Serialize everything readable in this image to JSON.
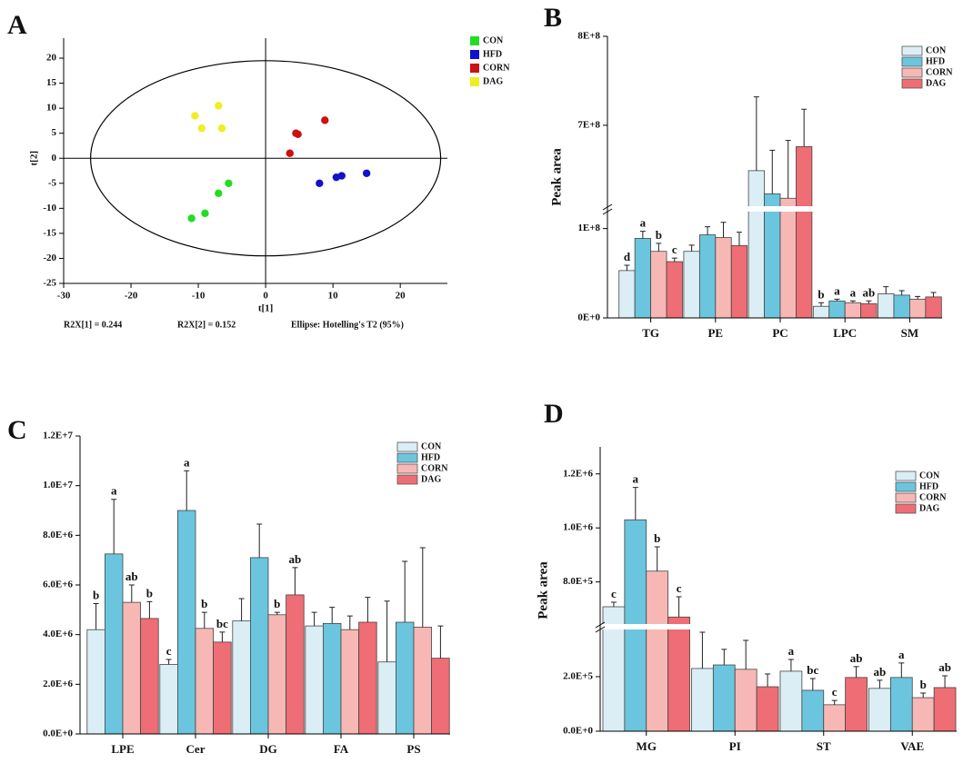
{
  "chart_data": [
    {
      "type": "scatter",
      "panel": "A",
      "xlabel": "t[1]",
      "ylabel": "t[2]",
      "xlim": [
        -30,
        27
      ],
      "ylim": [
        -25,
        24
      ],
      "xticks": [
        -30,
        -20,
        -10,
        0,
        10,
        20
      ],
      "yticks": [
        -25,
        -20,
        -15,
        -10,
        -5,
        0,
        5,
        10,
        15,
        20
      ],
      "ellipse": {
        "rx": 26,
        "ry": 19.5
      },
      "annotations": [
        "R2X[1] = 0.244",
        "R2X[2] = 0.152",
        "Ellipse: Hotelling's T2 (95%)"
      ],
      "series": [
        {
          "name": "CON",
          "color": "#22dd22",
          "x": [
            -11,
            -9,
            -7,
            -5.5
          ],
          "y": [
            -12,
            -11,
            -7,
            -5
          ]
        },
        {
          "name": "HFD",
          "color": "#1111cc",
          "x": [
            8,
            10.5,
            11.3,
            15
          ],
          "y": [
            -5,
            -3.8,
            -3.5,
            -3
          ]
        },
        {
          "name": "CORN",
          "color": "#cc1111",
          "x": [
            4.5,
            4.8,
            8.8,
            3.6
          ],
          "y": [
            5,
            4.8,
            7.6,
            1
          ]
        },
        {
          "name": "DAG",
          "color": "#eeee22",
          "x": [
            -10.5,
            -7,
            -9.5,
            -6.5
          ],
          "y": [
            8.5,
            10.5,
            6,
            6
          ]
        }
      ]
    },
    {
      "type": "bar",
      "panel": "B",
      "ylabel": "Peak area",
      "categories": [
        "TG",
        "PE",
        "PC",
        "LPC",
        "SM"
      ],
      "ylim": [
        0,
        800000000
      ],
      "ybreak": [
        122000000,
        606000000
      ],
      "yticks": [
        {
          "value": 0,
          "label": "0E+0"
        },
        {
          "value": 100000000,
          "label": "1E+8"
        },
        {
          "value": 700000000,
          "label": "7E+8"
        },
        {
          "value": 800000000,
          "label": "8E+8"
        }
      ],
      "series": [
        {
          "name": "CON",
          "color": "#dbeef5",
          "values": [
            53000000,
            74500000,
            649000000,
            13000000,
            27000000
          ],
          "errors": [
            6000000,
            7000000,
            83000000,
            4000000,
            8000000
          ],
          "letters": [
            "d",
            null,
            null,
            "b",
            null
          ]
        },
        {
          "name": "HFD",
          "color": "#6cc5de",
          "values": [
            89000000,
            93000000,
            623000000,
            19000000,
            25500000
          ],
          "errors": [
            8000000,
            9000000,
            49000000,
            2000000,
            5000000
          ],
          "letters": [
            "a",
            null,
            null,
            "a",
            null
          ]
        },
        {
          "name": "CORN",
          "color": "#f7b8b5",
          "values": [
            74500000,
            90000000,
            618000000,
            17000000,
            21000000
          ],
          "errors": [
            9000000,
            17000000,
            65000000,
            2000000,
            3000000
          ],
          "letters": [
            "b",
            null,
            null,
            "a",
            null
          ]
        },
        {
          "name": "DAG",
          "color": "#ef6d74",
          "values": [
            63000000,
            81000000,
            676000000,
            16000000,
            23500000
          ],
          "errors": [
            4000000,
            15000000,
            42000000,
            3000000,
            5000000
          ],
          "letters": [
            "c",
            null,
            null,
            "ab",
            null
          ]
        }
      ]
    },
    {
      "type": "bar",
      "panel": "C",
      "categories": [
        "LPE",
        "Cer",
        "DG",
        "FA",
        "PS"
      ],
      "ylim": [
        0,
        12000000
      ],
      "yticks": [
        {
          "value": 0,
          "label": "0.0E+0"
        },
        {
          "value": 2000000,
          "label": "2.0E+6"
        },
        {
          "value": 4000000,
          "label": "4.0E+6"
        },
        {
          "value": 6000000,
          "label": "6.0E+6"
        },
        {
          "value": 8000000,
          "label": "8.0E+6"
        },
        {
          "value": 10000000,
          "label": "1.0E+7"
        },
        {
          "value": 12000000,
          "label": "1.2E+7"
        }
      ],
      "series": [
        {
          "name": "CON",
          "color": "#dbeef5",
          "values": [
            4200000,
            2800000,
            4550000,
            4350000,
            2900000
          ],
          "errors": [
            1050000,
            200000,
            900000,
            550000,
            2450000
          ],
          "letters": [
            "b",
            "c",
            null,
            null,
            null
          ]
        },
        {
          "name": "HFD",
          "color": "#6cc5de",
          "values": [
            7250000,
            9000000,
            7100000,
            4450000,
            4500000
          ],
          "errors": [
            2200000,
            1600000,
            1350000,
            650000,
            2450000
          ],
          "letters": [
            "a",
            "a",
            null,
            null,
            null
          ]
        },
        {
          "name": "CORN",
          "color": "#f7b8b5",
          "values": [
            5300000,
            4250000,
            4800000,
            4200000,
            4300000
          ],
          "errors": [
            700000,
            650000,
            100000,
            550000,
            3200000
          ],
          "letters": [
            "ab",
            "b",
            "b",
            null,
            null
          ]
        },
        {
          "name": "DAG",
          "color": "#ef6d74",
          "values": [
            4650000,
            3700000,
            5600000,
            4500000,
            3050000
          ],
          "errors": [
            680000,
            400000,
            1100000,
            1000000,
            1300000
          ],
          "letters": [
            "b",
            "bc",
            "ab",
            null,
            null
          ]
        }
      ]
    },
    {
      "type": "bar",
      "panel": "D",
      "ylabel": "Peak area",
      "categories": [
        "MG",
        "PI",
        "ST",
        "VAE"
      ],
      "ylim": [
        0,
        1300000
      ],
      "ybreak": [
        383000,
        634000
      ],
      "yticks": [
        {
          "value": 0,
          "label": "0.0E+0"
        },
        {
          "value": 200000,
          "label": "2.0E+5"
        },
        {
          "value": 800000,
          "label": "8.0E+5"
        },
        {
          "value": 1000000,
          "label": "1.0E+6"
        },
        {
          "value": 1200000,
          "label": "1.2E+6"
        }
      ],
      "series": [
        {
          "name": "CON",
          "color": "#dbeef5",
          "values": [
            708000,
            230000,
            220000,
            157000
          ],
          "errors": [
            17000,
            133000,
            43000,
            30000
          ],
          "letters": [
            "c",
            null,
            "a",
            "ab"
          ]
        },
        {
          "name": "HFD",
          "color": "#6cc5de",
          "values": [
            1030000,
            243000,
            150000,
            197000
          ],
          "errors": [
            120000,
            57000,
            43000,
            53000
          ],
          "letters": [
            "a",
            null,
            "bc",
            "a"
          ]
        },
        {
          "name": "CORN",
          "color": "#f7b8b5",
          "values": [
            840000,
            227000,
            97000,
            123000
          ],
          "errors": [
            90000,
            106000,
            16000,
            17000
          ],
          "letters": [
            "b",
            null,
            "c",
            "b"
          ]
        },
        {
          "name": "DAG",
          "color": "#ef6d74",
          "values": [
            670000,
            163000,
            197000,
            160000
          ],
          "errors": [
            75000,
            47000,
            40000,
            43000
          ],
          "letters": [
            "c",
            null,
            "ab",
            "ab"
          ]
        }
      ]
    }
  ]
}
